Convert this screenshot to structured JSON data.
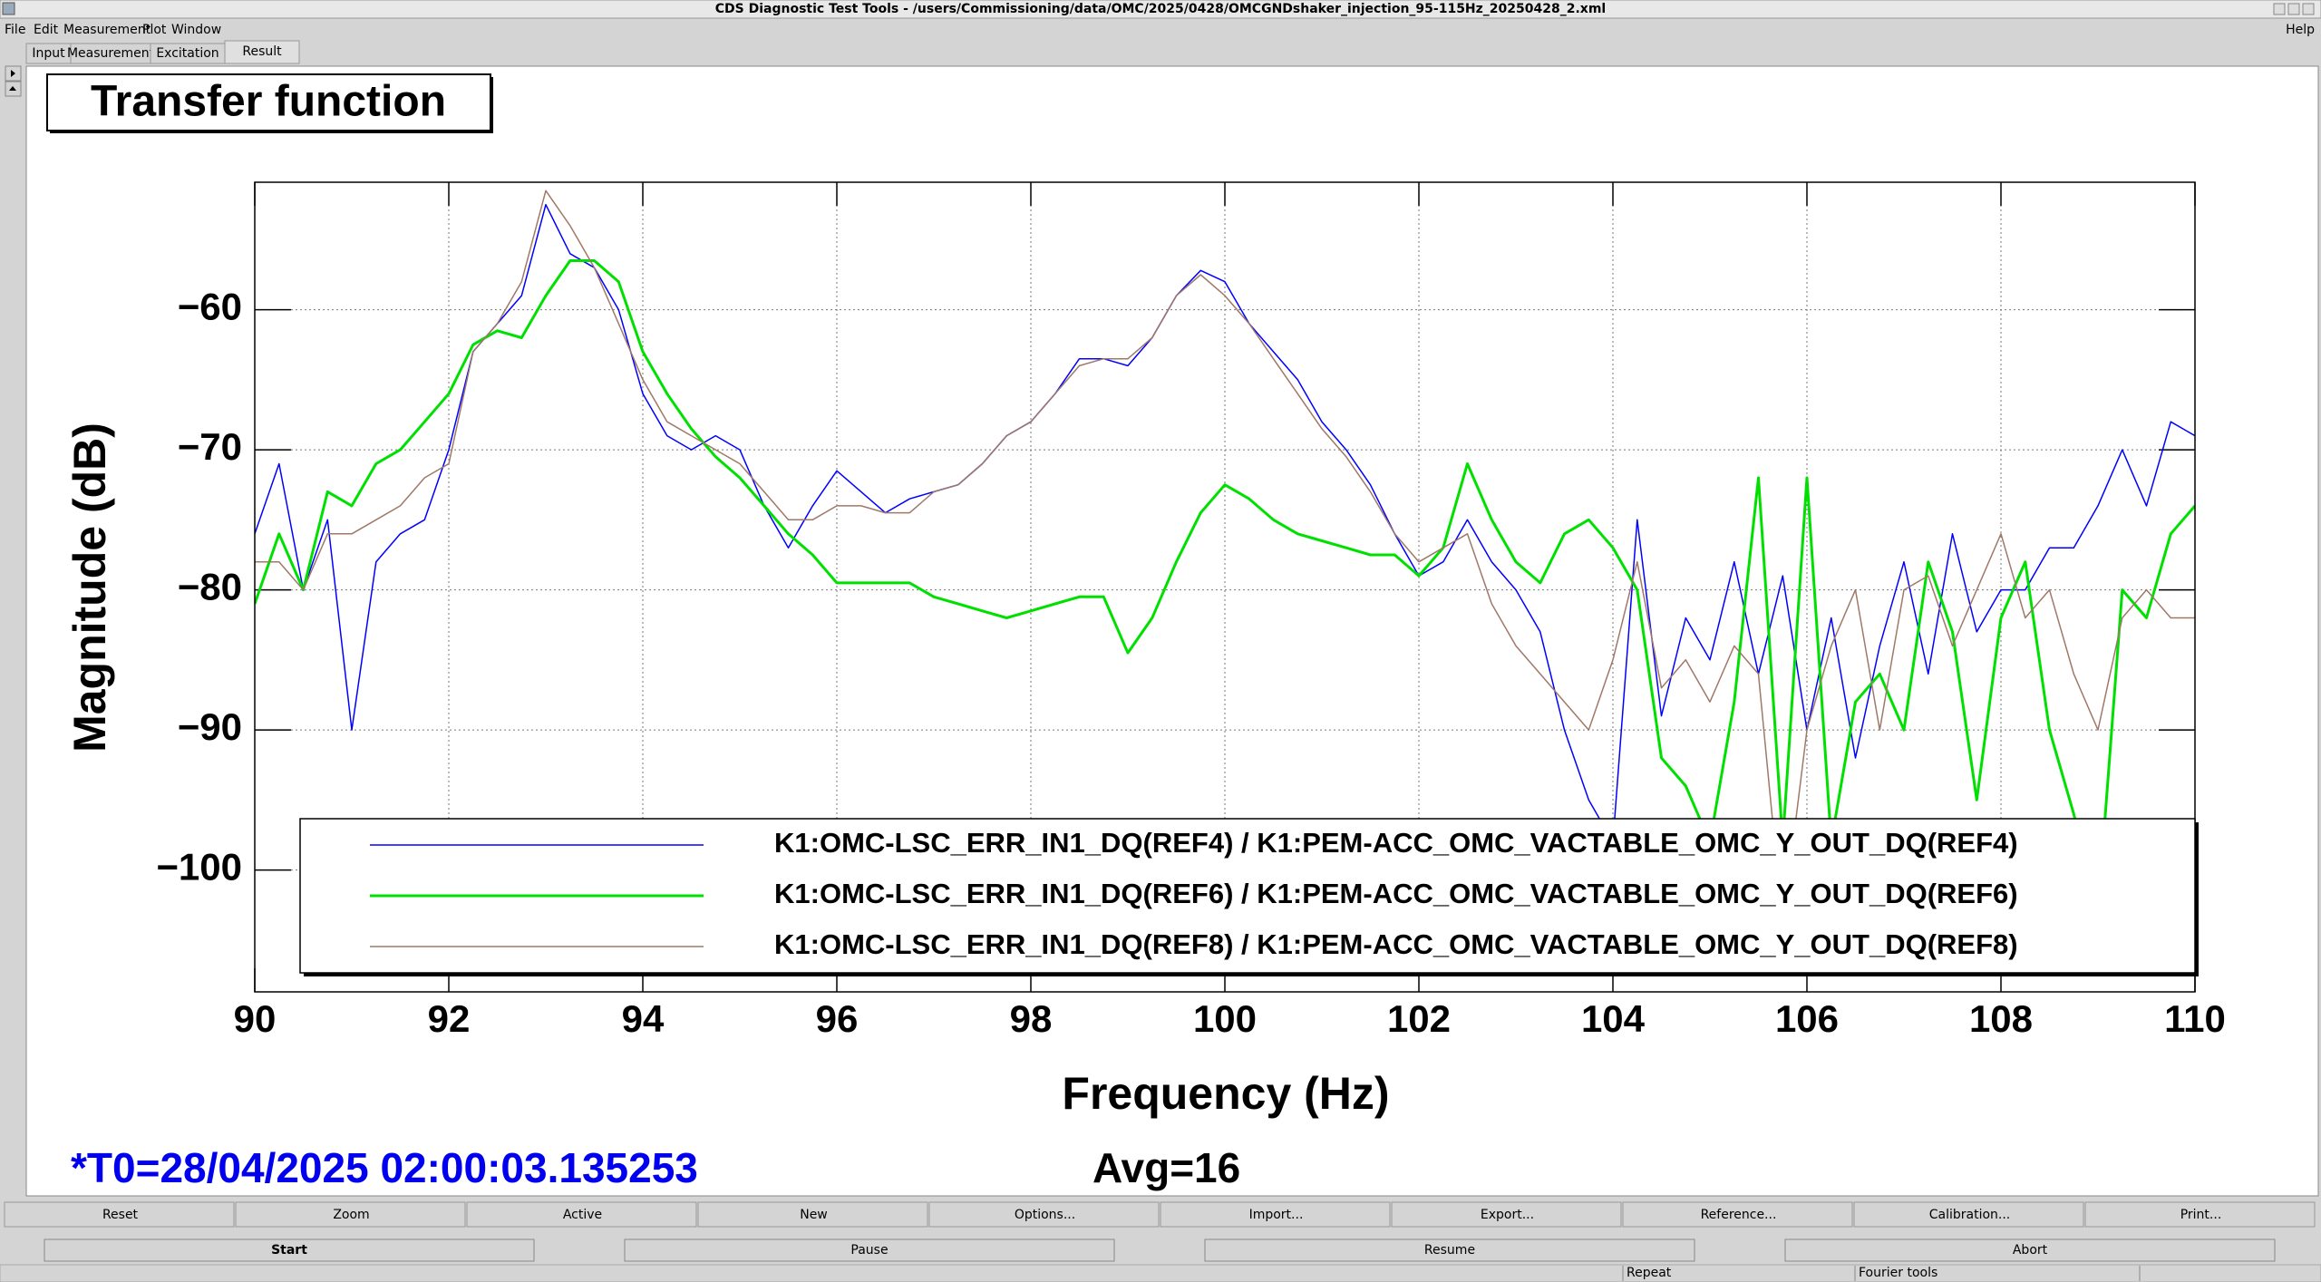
{
  "window": {
    "title": "CDS Diagnostic Test Tools - /users/Commissioning/data/OMC/2025/0428/OMCGNDshaker_injection_95-115Hz_20250428_2.xml"
  },
  "menu": {
    "items": [
      "File",
      "Edit",
      "Measurement",
      "Plot",
      "Window"
    ],
    "help": "Help"
  },
  "tabs": [
    "Input",
    "Measurement",
    "Excitation",
    "Result"
  ],
  "chart_data": {
    "type": "line",
    "title": "Transfer function",
    "x_label": "Frequency (Hz)",
    "y_label": "Magnitude (dB)",
    "xlim": [
      90,
      110
    ],
    "xticks": [
      90,
      92,
      94,
      96,
      98,
      100,
      102,
      104,
      106,
      108,
      110
    ],
    "ylim": [
      -108.7,
      -50.9
    ],
    "yticks": [
      {
        "value": -60,
        "label": "−60"
      },
      {
        "value": -70,
        "label": "−70"
      },
      {
        "value": -80,
        "label": "−80"
      },
      {
        "value": -90,
        "label": "−90"
      },
      {
        "value": -100,
        "label": "−100"
      }
    ],
    "grid": true,
    "x": [
      90,
      90.25,
      90.5,
      90.75,
      91,
      91.25,
      91.5,
      91.75,
      92,
      92.25,
      92.5,
      92.75,
      93,
      93.25,
      93.5,
      93.75,
      94,
      94.25,
      94.5,
      94.75,
      95,
      95.25,
      95.5,
      95.75,
      96,
      96.25,
      96.5,
      96.75,
      97,
      97.25,
      97.5,
      97.75,
      98,
      98.25,
      98.5,
      98.75,
      99,
      99.25,
      99.5,
      99.75,
      100,
      100.25,
      100.5,
      100.75,
      101,
      101.25,
      101.5,
      101.75,
      102,
      102.25,
      102.5,
      102.75,
      103,
      103.25,
      103.5,
      103.75,
      104,
      104.25,
      104.5,
      104.75,
      105,
      105.25,
      105.5,
      105.75,
      106,
      106.25,
      106.5,
      106.75,
      107,
      107.25,
      107.5,
      107.75,
      108,
      108.25,
      108.5,
      108.75,
      109,
      109.25,
      109.5,
      109.75,
      110
    ],
    "series": [
      {
        "name": "K1:OMC-LSC_ERR_IN1_DQ(REF4) / K1:PEM-ACC_OMC_VACTABLE_OMC_Y_OUT_DQ(REF4)",
        "color": "#0000ff",
        "width": 1.5,
        "values": [
          -76,
          -71,
          -80,
          -75,
          -90,
          -78,
          -76,
          -75,
          -70,
          -63,
          -61,
          -59,
          -52.5,
          -56,
          -57,
          -60,
          -66,
          -69,
          -70,
          -69,
          -70,
          -74,
          -77,
          -74,
          -71.5,
          -73,
          -74.5,
          -73.5,
          -73,
          -72.5,
          -71,
          -69,
          -68,
          -66,
          -63.5,
          -63.5,
          -64,
          -62,
          -59,
          -57.2,
          -58,
          -61,
          -63,
          -65,
          -68,
          -70,
          -72.5,
          -76,
          -79,
          -78,
          -75,
          -78,
          -80,
          -83,
          -90,
          -95,
          -98,
          -75,
          -89,
          -82,
          -85,
          -78,
          -86,
          -79,
          -90,
          -82,
          -92,
          -84,
          -78,
          -86,
          -76,
          -83,
          -80,
          -80,
          -77,
          -77,
          -74,
          -70,
          -74,
          -68,
          -69
        ]
      },
      {
        "name": "K1:OMC-LSC_ERR_IN1_DQ(REF6) / K1:PEM-ACC_OMC_VACTABLE_OMC_Y_OUT_DQ(REF6)",
        "color": "#00e000",
        "width": 3,
        "values": [
          -81,
          -76,
          -80,
          -73,
          -74,
          -71,
          -70,
          -68,
          -66,
          -62.5,
          -61.5,
          -62,
          -59,
          -56.5,
          -56.5,
          -58,
          -63,
          -66,
          -68.5,
          -70.5,
          -72,
          -74,
          -76,
          -77.5,
          -79.5,
          -79.5,
          -79.5,
          -79.5,
          -80.5,
          -81,
          -81.5,
          -82,
          -81.5,
          -81,
          -80.5,
          -80.5,
          -84.5,
          -82,
          -78,
          -74.5,
          -72.5,
          -73.5,
          -75,
          -76,
          -76.5,
          -77,
          -77.5,
          -77.5,
          -79,
          -77,
          -71,
          -75,
          -78,
          -79.5,
          -76,
          -75,
          -77,
          -80,
          -92,
          -94,
          -98,
          -88,
          -72,
          -98,
          -72,
          -98,
          -88,
          -86,
          -90,
          -78,
          -83,
          -95,
          -82,
          -78,
          -90,
          -96,
          -103,
          -80,
          -82,
          -76,
          -74
        ]
      },
      {
        "name": "K1:OMC-LSC_ERR_IN1_DQ(REF8) / K1:PEM-ACC_OMC_VACTABLE_OMC_Y_OUT_DQ(REF8)",
        "color": "#a07868",
        "width": 1.5,
        "values": [
          -78,
          -78,
          -80,
          -76,
          -76,
          -75,
          -74,
          -72,
          -71,
          -63,
          -61,
          -58,
          -51.5,
          -54,
          -57,
          -61,
          -65,
          -68,
          -69,
          -70,
          -71,
          -73,
          -75,
          -75,
          -74,
          -74,
          -74.5,
          -74.5,
          -73,
          -72.5,
          -71,
          -69,
          -68,
          -66,
          -64,
          -63.5,
          -63.5,
          -62,
          -59,
          -57.5,
          -59,
          -61,
          -63.5,
          -66,
          -68.5,
          -70.5,
          -73,
          -76,
          -78,
          -77,
          -76,
          -81,
          -84,
          -86,
          -88,
          -90,
          -85,
          -78,
          -87,
          -85,
          -88,
          -84,
          -86,
          -104,
          -90,
          -84,
          -80,
          -90,
          -80,
          -79,
          -84,
          -80,
          -76,
          -82,
          -80,
          -86,
          -90,
          -82,
          -80,
          -82,
          -82
        ]
      }
    ]
  },
  "info": {
    "t0": "*T0=28/04/2025 02:00:03.135253",
    "avg": "Avg=16"
  },
  "buttons": [
    "Reset",
    "Zoom",
    "Active",
    "New",
    "Options...",
    "Import...",
    "Export...",
    "Reference...",
    "Calibration...",
    "Print..."
  ],
  "controls": [
    "Start",
    "Pause",
    "Resume",
    "Abort"
  ],
  "status": [
    "Repeat",
    "Fourier tools"
  ]
}
